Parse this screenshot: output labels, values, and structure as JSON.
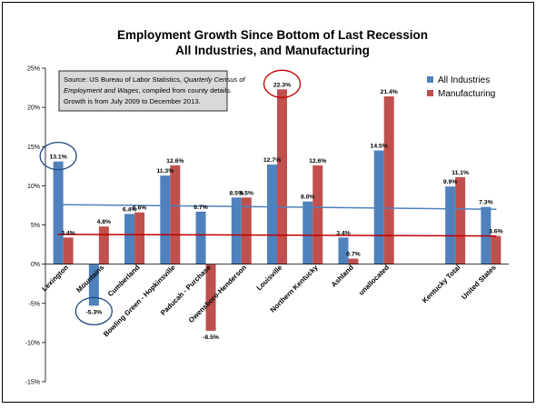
{
  "chart_data": {
    "type": "bar",
    "title": "Employment Growth Since Bottom of Last Recession",
    "subtitle": "All Industries, and Manufacturing",
    "xlabel": "",
    "ylabel": "",
    "ylim": [
      -15,
      25
    ],
    "yticks": [
      -15,
      -10,
      -5,
      0,
      5,
      10,
      15,
      20,
      25
    ],
    "ytick_labels": [
      "-15%",
      "-10%",
      "-5%",
      "0%",
      "5%",
      "10%",
      "15%",
      "20%",
      "25%"
    ],
    "categories": [
      "Lexington",
      "Mountains",
      "Cumberland",
      "Bowling Green - Hopkinsville",
      "Paducah - Purchase",
      "Owensboro-Henderson",
      "Louisville",
      "Northern Kentucky",
      "Ashland",
      "unallocated",
      "",
      "Kentucky Total",
      "United States"
    ],
    "series": [
      {
        "name": "All Industries",
        "color": "#4F81BD",
        "values": [
          13.1,
          -5.3,
          6.4,
          11.3,
          6.7,
          8.5,
          12.7,
          8.0,
          3.4,
          14.5,
          null,
          9.9,
          7.3
        ],
        "labels": [
          "13.1%",
          "-5.3%",
          "6.4%",
          "11.3%",
          "6.7%",
          "8.5%",
          "12.7%",
          "8.0%",
          "3.4%",
          "14.5%",
          "",
          "9.9%",
          "7.3%"
        ]
      },
      {
        "name": "Manufacturing",
        "color": "#C0504D",
        "values": [
          3.4,
          4.8,
          6.6,
          12.6,
          -8.5,
          8.5,
          22.3,
          12.6,
          0.7,
          21.4,
          null,
          11.1,
          3.6
        ],
        "labels": [
          "3.4%",
          "4.8%",
          "6.6%",
          "12.6%",
          "-8.5%",
          "8.5%",
          "22.3%",
          "12.6%",
          "0.7%",
          "21.4%",
          "",
          "11.1%",
          "3.6%"
        ]
      }
    ],
    "trendlines": [
      {
        "series": "All Industries",
        "color": "#4F81BD",
        "from": 7.6,
        "to": 7.0
      },
      {
        "series": "Manufacturing",
        "color": "#C00000",
        "from": 3.8,
        "to": 3.6
      }
    ],
    "highlights": [
      {
        "series": 0,
        "index": 0
      },
      {
        "series": 0,
        "index": 1
      },
      {
        "series": 1,
        "index": 6
      }
    ],
    "source_note": {
      "line1_prefix": "Source: US Bureau of Labor Statistics, ",
      "line1_italic": "Quarterly Census of",
      "line2_italic": "Employment and Wages",
      "line2_suffix": ", compiled from county details.",
      "line3": "Growth is from July 2009 to December 2013."
    },
    "legend_position": "top-right",
    "grid": false
  }
}
